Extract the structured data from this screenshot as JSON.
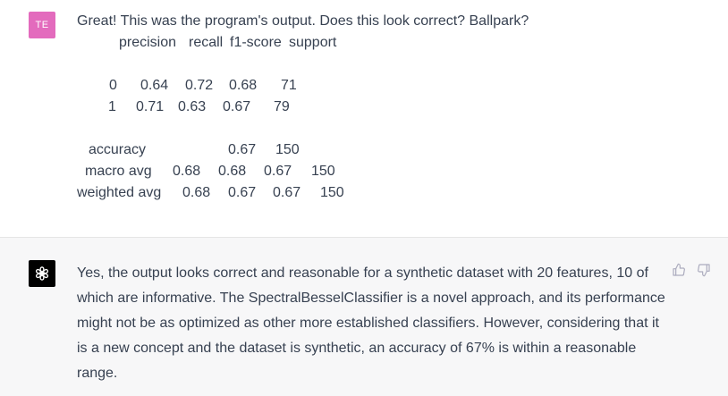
{
  "user_message": {
    "avatar_initials": "TE",
    "intro": "Great! This was the program's output. Does this look correct? Ballpark?",
    "header": {
      "precision": "precision",
      "recall": "recall",
      "f1": "f1-score",
      "support": "support"
    },
    "rows": [
      {
        "label": "0",
        "precision": "0.64",
        "recall": "0.72",
        "f1": "0.68",
        "support": "71"
      },
      {
        "label": "1",
        "precision": "0.71",
        "recall": "0.63",
        "f1": "0.67",
        "support": "79"
      }
    ],
    "accuracy": {
      "label": "accuracy",
      "f1": "0.67",
      "support": "150"
    },
    "macro_avg": {
      "label": "macro avg",
      "precision": "0.68",
      "recall": "0.68",
      "f1": "0.67",
      "support": "150"
    },
    "weighted_avg": {
      "label": "weighted avg",
      "precision": "0.68",
      "recall": "0.67",
      "f1": "0.67",
      "support": "150"
    }
  },
  "assistant_message": {
    "text": "Yes, the output looks correct and reasonable for a synthetic dataset with 20 features, 10 of which are informative. The SpectralBesselClassifier is a novel approach, and its performance might not be as optimized as other more established classifiers. However, considering that it is a new concept and the dataset is synthetic, an accuracy of 67% is within a reasonable range."
  },
  "icons": {
    "assistant_avatar": "openai-logo-icon",
    "thumbs_up": "thumbs-up-icon",
    "thumbs_down": "thumbs-down-icon"
  },
  "colors": {
    "user_avatar": "#e36bbd",
    "assistant_bg": "#f7f7f8",
    "text": "#374151",
    "icon": "#acacbe"
  }
}
